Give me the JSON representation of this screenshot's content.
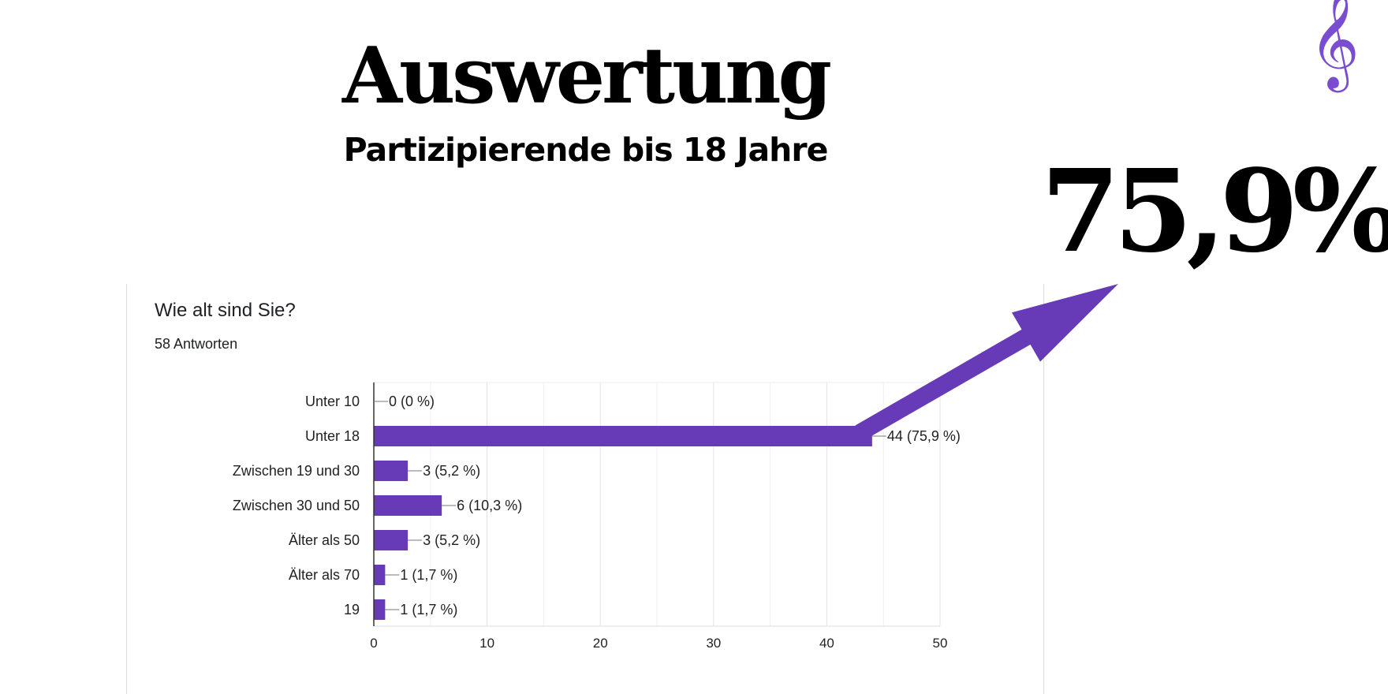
{
  "header": {
    "title": "Auswertung",
    "subtitle": "Partizipierende bis 18 Jahre",
    "highlight": "75,9%"
  },
  "card": {
    "question": "Wie alt sind Sie?",
    "responses": "58 Antworten"
  },
  "colors": {
    "accent": "#673ab7",
    "clef": "#7a4dd0"
  },
  "chart_data": {
    "type": "bar",
    "orientation": "horizontal",
    "categories": [
      "Unter 10",
      "Unter 18",
      "Zwischen 19 und 30",
      "Zwischen 30 und 50",
      "Älter als 50",
      "Älter als 70",
      "19"
    ],
    "values": [
      0,
      44,
      3,
      6,
      3,
      1,
      1
    ],
    "data_labels": [
      "0 (0 %)",
      "44 (75,9 %)",
      "3 (5,2 %)",
      "6 (10,3 %)",
      "3 (5,2 %)",
      "1 (1,7 %)",
      "1 (1,7 %)"
    ],
    "xlim": [
      0,
      50
    ],
    "xticks": [
      0,
      10,
      20,
      30,
      40,
      50
    ],
    "grid": true,
    "annotation": {
      "type": "arrow",
      "from_category": "Unter 18",
      "points_to": "75,9%"
    }
  }
}
